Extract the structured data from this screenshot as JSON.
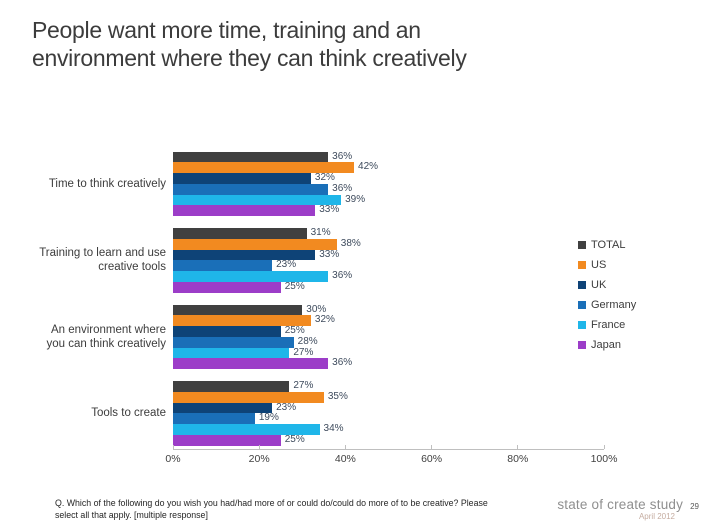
{
  "title": {
    "lines": [
      "People want more time, training and an",
      "environment where they can think creatively"
    ]
  },
  "chart_data": {
    "type": "bar",
    "orientation": "horizontal",
    "categories": [
      "Time to think creatively",
      "Training to learn and use creative tools",
      "An environment where you can think creatively",
      "Tools to create"
    ],
    "category_lines": [
      [
        "Time to think creatively"
      ],
      [
        "Training to learn and use",
        "creative tools"
      ],
      [
        "An environment where",
        "you can think creatively"
      ],
      [
        "Tools to create"
      ]
    ],
    "series": [
      {
        "name": "TOTAL",
        "color": "#404040",
        "values": [
          36,
          31,
          30,
          27
        ]
      },
      {
        "name": "US",
        "color": "#F28A20",
        "values": [
          42,
          38,
          32,
          35
        ]
      },
      {
        "name": "UK",
        "color": "#0E4377",
        "values": [
          32,
          33,
          25,
          23
        ]
      },
      {
        "name": "Germany",
        "color": "#1A6FB8",
        "values": [
          36,
          23,
          28,
          19
        ]
      },
      {
        "name": "France",
        "color": "#1FB6E9",
        "values": [
          39,
          36,
          27,
          34
        ]
      },
      {
        "name": "Japan",
        "color": "#9C3DC8",
        "values": [
          33,
          25,
          36,
          25
        ]
      }
    ],
    "xlim": [
      0,
      100
    ],
    "x_ticks": [
      "0%",
      "20%",
      "40%",
      "60%",
      "80%",
      "100%"
    ],
    "value_label_suffix": "%",
    "value_label_color": "#3D4A5C",
    "axis_color": "#BFBFBF",
    "grid": false,
    "legend_position": "right"
  },
  "footer": {
    "question_lines": [
      "Q. Which of the following do you wish you had/had more of or could do/could do more of to be creative? Please",
      "select all that apply. [multiple response]"
    ],
    "brand": "state of create study",
    "page": "29",
    "date": "April 2012"
  }
}
